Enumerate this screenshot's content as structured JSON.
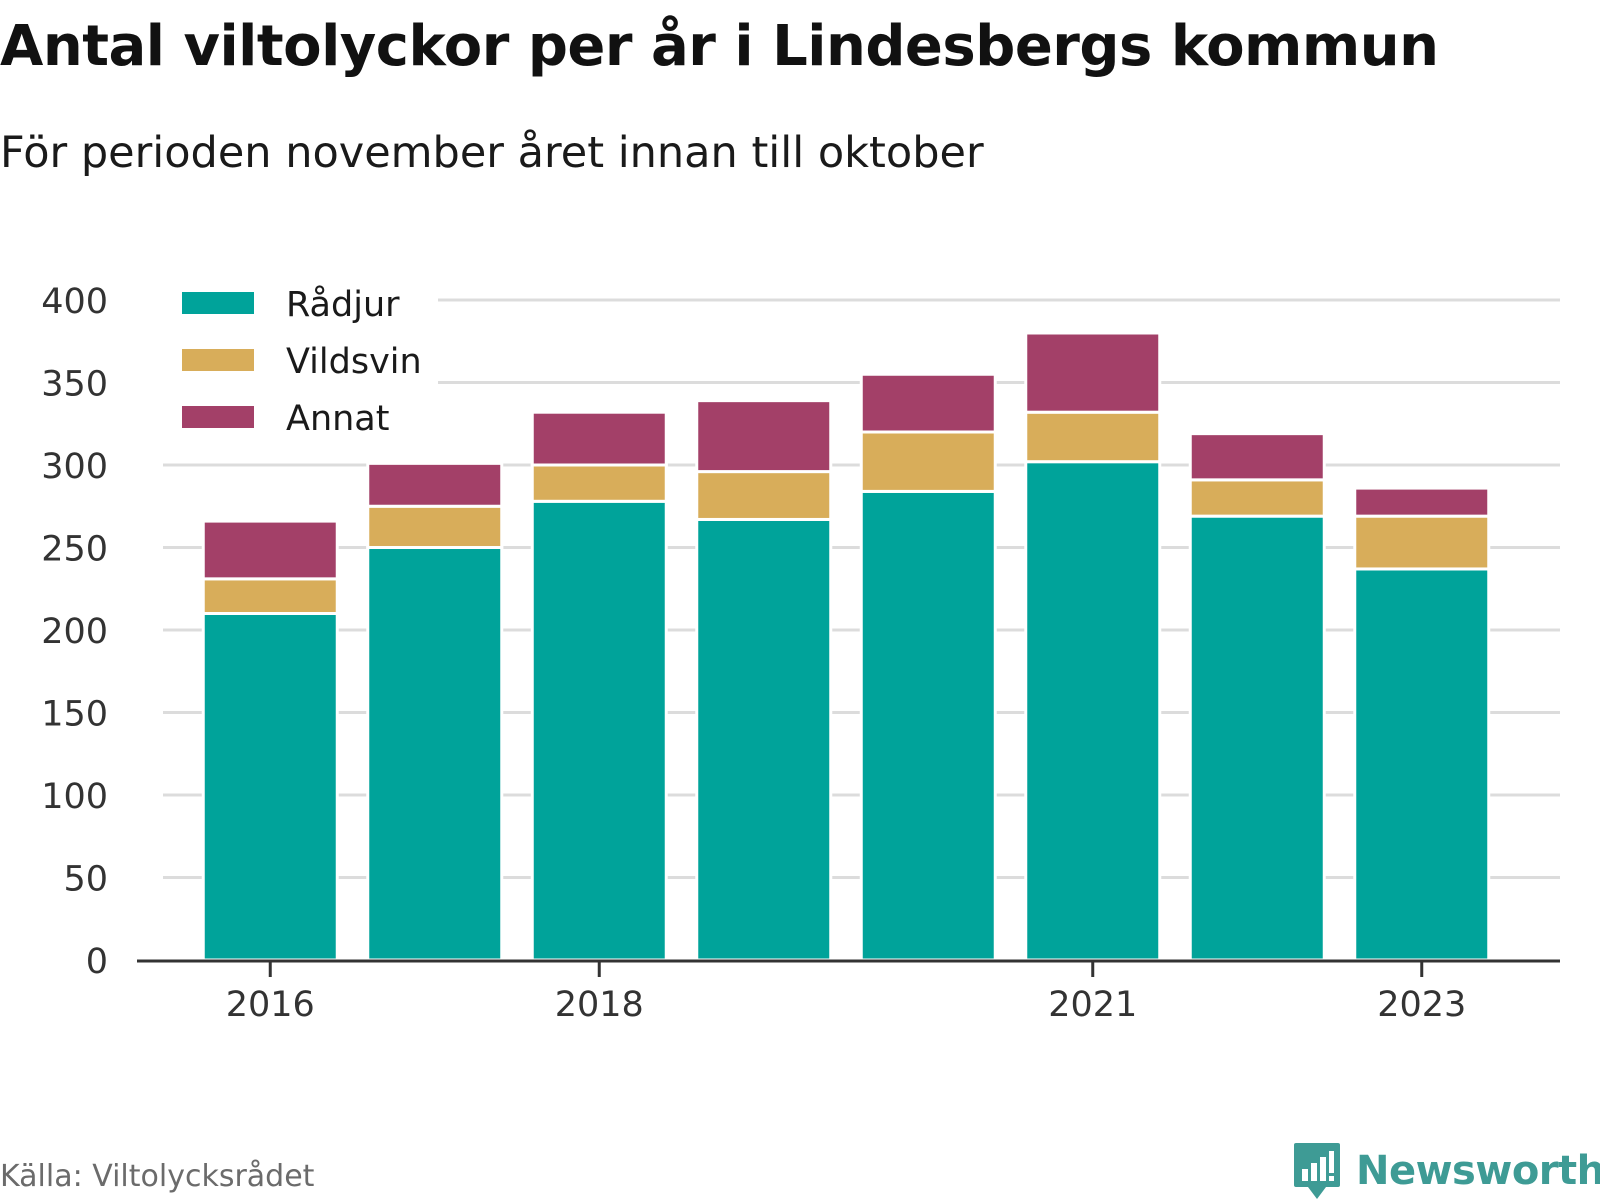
{
  "title": "Antal viltolyckor per år i Lindesbergs kommun",
  "subtitle": "För perioden november året innan till oktober",
  "source": "Källa: Viltolycksrådet",
  "logo": {
    "text": "Newsworthy",
    "icon": "newsworthy-logo-icon",
    "color": "#3e9b95"
  },
  "colors": {
    "radjur": "#00a39a",
    "vildsvin": "#d8ad5a",
    "annat": "#a34068"
  },
  "chart_data": {
    "type": "bar",
    "stacked": true,
    "categories": [
      2016,
      2017,
      2018,
      2019,
      2020,
      2021,
      2022,
      2023
    ],
    "x_tick_labels": [
      "2016",
      "2018",
      "2021",
      "2023"
    ],
    "series": [
      {
        "name": "Rådjur",
        "color": "#00a39a",
        "values": [
          210,
          250,
          278,
          267,
          284,
          302,
          269,
          237
        ]
      },
      {
        "name": "Vildsvin",
        "color": "#d8ad5a",
        "values": [
          21,
          25,
          22,
          29,
          36,
          30,
          22,
          32
        ]
      },
      {
        "name": "Annat",
        "color": "#a34068",
        "values": [
          35,
          26,
          32,
          43,
          35,
          48,
          28,
          17
        ]
      }
    ],
    "y_ticks": [
      0,
      50,
      100,
      150,
      200,
      250,
      300,
      350,
      400
    ],
    "ylim": [
      0,
      400
    ],
    "grid": true,
    "legend_position": "top-left"
  }
}
